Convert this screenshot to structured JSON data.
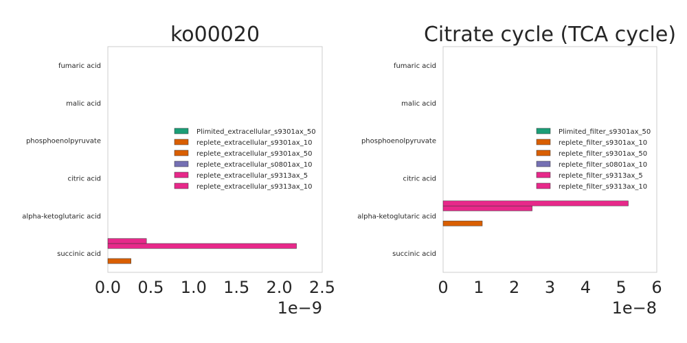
{
  "chart_data": [
    {
      "type": "bar",
      "orientation": "horizontal",
      "title": "ko00020",
      "categories": [
        "fumaric acid",
        "malic acid",
        "phosphoenolpyruvate",
        "citric acid",
        "alpha-ketoglutaric acid",
        "succinic acid"
      ],
      "xlim": [
        0,
        2.5e-09
      ],
      "x_ticks": [
        "0.0",
        "0.5",
        "1.0",
        "1.5",
        "2.0",
        "2.5"
      ],
      "x_offset_label": "1e−9",
      "grid": false,
      "legend_position": "center-right",
      "series": [
        {
          "name": "Plimited_extracellular_s9301ax_50",
          "color": "#1b9e77",
          "values": [
            0,
            0,
            0,
            0,
            0,
            0
          ]
        },
        {
          "name": "replete_extracellular_s9301ax_10",
          "color": "#d95f02",
          "values": [
            0,
            0,
            0,
            0,
            0,
            2.7e-10
          ]
        },
        {
          "name": "replete_extracellular_s9301ax_50",
          "color": "#d95f02",
          "values": [
            0,
            0,
            0,
            0,
            0,
            0
          ]
        },
        {
          "name": "replete_extracellular_s0801ax_10",
          "color": "#7570b3",
          "values": [
            0,
            0,
            0,
            0,
            0,
            0
          ]
        },
        {
          "name": "replete_extracellular_s9313ax_5",
          "color": "#e7298a",
          "values": [
            0,
            0,
            0,
            0,
            0,
            2.2e-09
          ]
        },
        {
          "name": "replete_extracellular_s9313ax_10",
          "color": "#e7298a",
          "values": [
            0,
            0,
            0,
            0,
            0,
            4.5e-10
          ]
        }
      ]
    },
    {
      "type": "bar",
      "orientation": "horizontal",
      "title": "Citrate cycle (TCA cycle)",
      "categories": [
        "fumaric acid",
        "malic acid",
        "phosphoenolpyruvate",
        "citric acid",
        "alpha-ketoglutaric acid",
        "succinic acid"
      ],
      "xlim": [
        0,
        6e-08
      ],
      "x_ticks": [
        "0",
        "1",
        "2",
        "3",
        "4",
        "5",
        "6"
      ],
      "x_offset_label": "1e−8",
      "grid": false,
      "legend_position": "center-right",
      "series": [
        {
          "name": "Plimited_filter_s9301ax_50",
          "color": "#1b9e77",
          "values": [
            0,
            0,
            0,
            0,
            0,
            0
          ]
        },
        {
          "name": "replete_filter_s9301ax_10",
          "color": "#d95f02",
          "values": [
            0,
            0,
            0,
            0,
            1.1e-08,
            0
          ]
        },
        {
          "name": "replete_filter_s9301ax_50",
          "color": "#d95f02",
          "values": [
            0,
            0,
            0,
            0,
            0,
            0
          ]
        },
        {
          "name": "replete_filter_s0801ax_10",
          "color": "#7570b3",
          "values": [
            0,
            0,
            0,
            0,
            0,
            0
          ]
        },
        {
          "name": "replete_filter_s9313ax_5",
          "color": "#e7298a",
          "values": [
            0,
            0,
            0,
            0,
            2.5e-08,
            0
          ]
        },
        {
          "name": "replete_filter_s9313ax_10",
          "color": "#e7298a",
          "values": [
            0,
            0,
            0,
            0,
            5.2e-08,
            0
          ]
        }
      ]
    }
  ]
}
